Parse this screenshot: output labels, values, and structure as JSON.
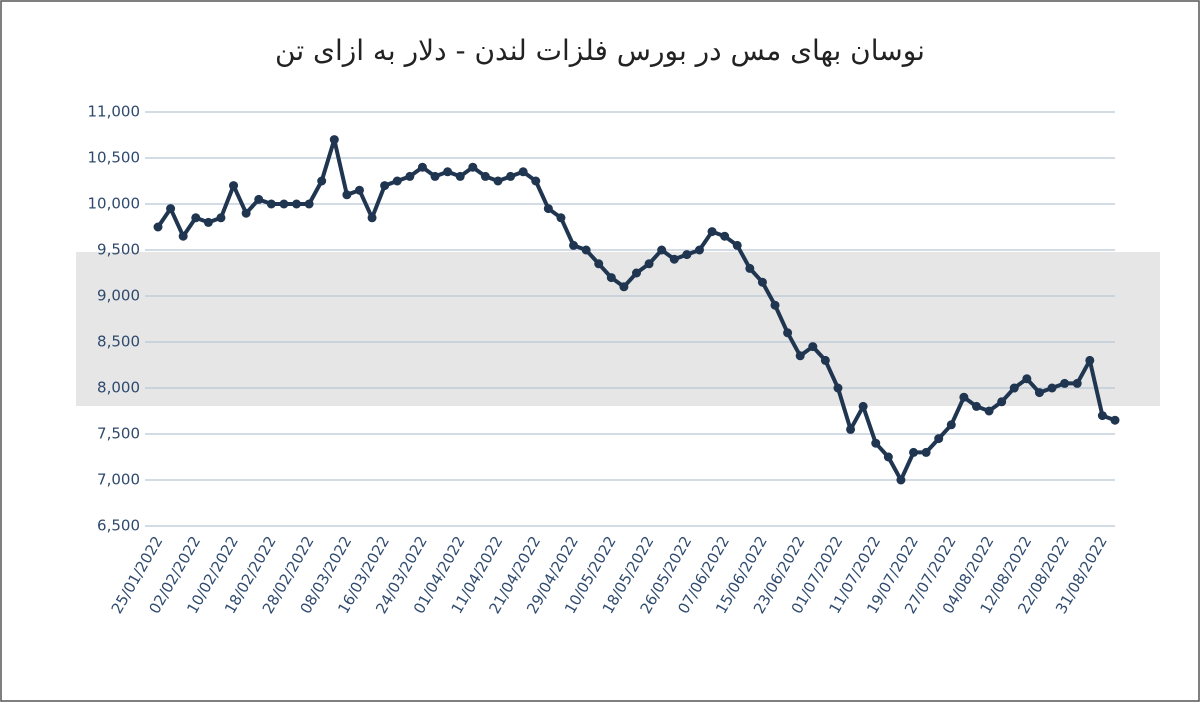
{
  "chart_data": {
    "type": "line",
    "title": "نوسان بهای مس در بورس فلزات لندن - دلار به ازای تن",
    "categories": [
      "25/01/2022",
      null,
      null,
      "02/02/2022",
      null,
      null,
      "10/02/2022",
      null,
      null,
      "18/02/2022",
      null,
      null,
      "28/02/2022",
      null,
      null,
      "08/03/2022",
      null,
      null,
      "16/03/2022",
      null,
      null,
      "24/03/2022",
      null,
      null,
      "01/04/2022",
      null,
      null,
      "11/04/2022",
      null,
      null,
      "21/04/2022",
      null,
      null,
      "29/04/2022",
      null,
      null,
      "10/05/2022",
      null,
      null,
      "18/05/2022",
      null,
      null,
      "26/05/2022",
      null,
      null,
      "07/06/2022",
      null,
      null,
      "15/06/2022",
      null,
      null,
      "23/06/2022",
      null,
      null,
      "01/07/2022",
      null,
      null,
      "11/07/2022",
      null,
      null,
      "19/07/2022",
      null,
      null,
      "27/07/2022",
      null,
      null,
      "04/08/2022",
      null,
      null,
      "12/08/2022",
      null,
      null,
      "22/08/2022",
      null,
      null,
      "31/08/2022",
      null
    ],
    "series": [
      {
        "color": "#1f3550",
        "values": [
          9750,
          9950,
          9650,
          9850,
          9800,
          9850,
          10200,
          9900,
          10050,
          10000,
          10000,
          10000,
          10000,
          10250,
          10700,
          10100,
          10150,
          9850,
          10200,
          10250,
          10300,
          10400,
          10300,
          10350,
          10300,
          10400,
          10300,
          10250,
          10300,
          10350,
          10250,
          9950,
          9850,
          9550,
          9500,
          9350,
          9200,
          9100,
          9250,
          9350,
          9500,
          9400,
          9450,
          9500,
          9700,
          9650,
          9550,
          9300,
          9150,
          8900,
          8600,
          8350,
          8450,
          8300,
          8000,
          7550,
          7800,
          7400,
          7250,
          7000,
          7300,
          7300,
          7450,
          7600,
          7900,
          7800,
          7750,
          7850,
          8000,
          8100,
          7950,
          8000,
          8050,
          8050,
          8300,
          7700,
          7650
        ]
      }
    ],
    "ylim": [
      6500,
      11000
    ],
    "yticks": [
      {
        "value": 6500,
        "label": "6,500"
      },
      {
        "value": 7000,
        "label": "7,000"
      },
      {
        "value": 7500,
        "label": "7,500"
      },
      {
        "value": 8000,
        "label": "8,000"
      },
      {
        "value": 8500,
        "label": "8,500"
      },
      {
        "value": 9000,
        "label": "9,000"
      },
      {
        "value": 9500,
        "label": "9,500"
      },
      {
        "value": 10000,
        "label": "10,000"
      },
      {
        "value": 10500,
        "label": "10,500"
      },
      {
        "value": 11000,
        "label": "11,000"
      }
    ],
    "grid": true
  }
}
